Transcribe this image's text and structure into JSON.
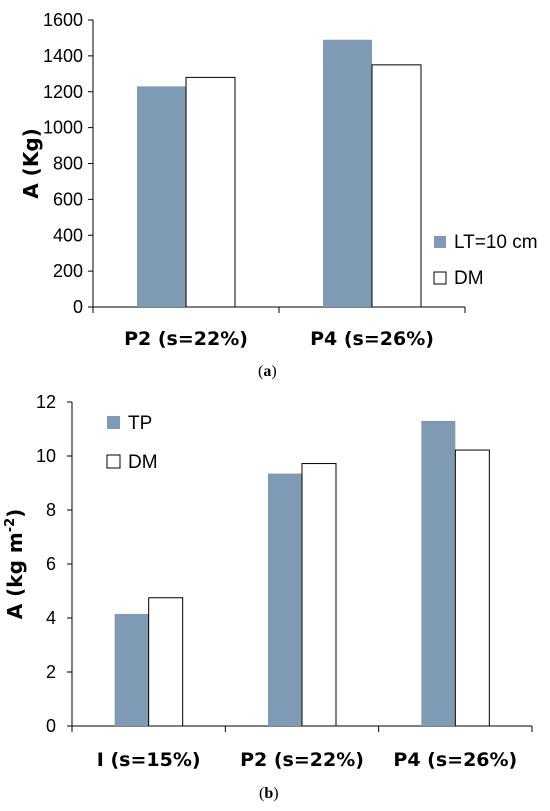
{
  "colors": {
    "filled": "#7f9ab4",
    "empty": "#ffffff",
    "stroke": "#000000",
    "axis": "#000000"
  },
  "captions": {
    "a_open": "(",
    "a_letter": "a",
    "a_close": ")",
    "b_open": "(",
    "b_letter": "b",
    "b_close": ")"
  },
  "chart_data": [
    {
      "type": "bar",
      "ylabel": "A (Kg)",
      "xlabel": "",
      "categories": [
        "P2 (s=22%)",
        "P4  (s=26%)"
      ],
      "series": [
        {
          "name": "LT=10 cm",
          "style": "filled",
          "values": [
            1230,
            1490
          ]
        },
        {
          "name": "DM",
          "style": "empty",
          "values": [
            1280,
            1350
          ]
        }
      ],
      "ylim": [
        0,
        1600
      ],
      "yticks": [
        0,
        200,
        400,
        600,
        800,
        1000,
        1200,
        1400,
        1600
      ],
      "ytick_labels": [
        "0",
        "200",
        "400",
        "600",
        "800",
        "1000",
        "1200",
        "1400",
        "1600"
      ],
      "grid": false,
      "legend": "bottom-right"
    },
    {
      "type": "bar",
      "ylabel": "A (kg m",
      "ylabel_sup": "-2",
      "ylabel_close": ")",
      "xlabel": "",
      "categories": [
        "I (s=15%)",
        "P2 (s=22%)",
        "P4 (s=26%)"
      ],
      "series": [
        {
          "name": "TP",
          "style": "filled",
          "values": [
            4.15,
            9.35,
            11.3
          ]
        },
        {
          "name": "DM",
          "style": "empty",
          "values": [
            4.75,
            9.72,
            10.22
          ]
        }
      ],
      "ylim": [
        0,
        12
      ],
      "yticks": [
        0,
        2,
        4,
        6,
        8,
        10,
        12
      ],
      "ytick_labels": [
        "0",
        "2",
        "4",
        "6",
        "8",
        "10",
        "12"
      ],
      "grid": false,
      "legend": "top-left"
    }
  ]
}
